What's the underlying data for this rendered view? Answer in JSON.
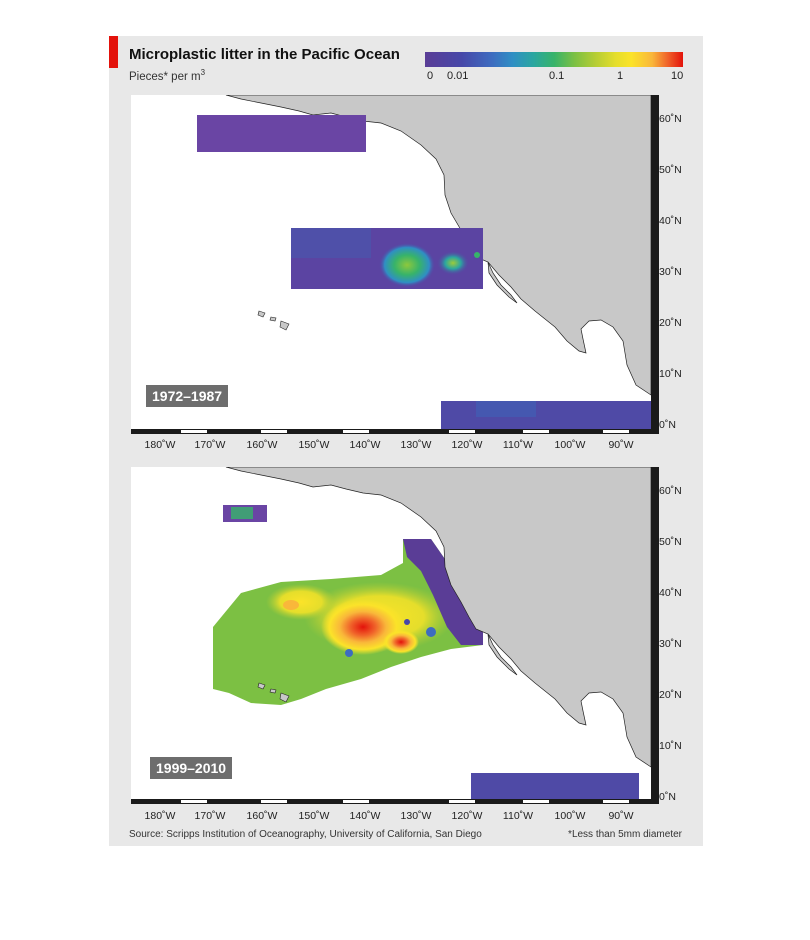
{
  "header": {
    "title": "Microplastic litter in the Pacific Ocean",
    "subtitle": "Pieces* per m",
    "subtitle_sup": "3"
  },
  "legend": {
    "ticks": [
      "0",
      "0.01",
      "0.1",
      "1",
      "10"
    ],
    "colors": {
      "low": "#5a3d96",
      "mid": "#37b36a",
      "high_mid": "#fbe329",
      "high": "#e3120b"
    }
  },
  "panels": [
    {
      "period": "1972–1987"
    },
    {
      "period": "1999–2010"
    }
  ],
  "axes": {
    "longitude_labels": [
      "180˚W",
      "170˚W",
      "160˚W",
      "150˚W",
      "140˚W",
      "130˚W",
      "120˚W",
      "110˚W",
      "100˚W",
      "90˚W"
    ],
    "latitude_labels": [
      "60˚N",
      "50˚N",
      "40˚N",
      "30˚N",
      "20˚N",
      "10˚N",
      "0˚N"
    ]
  },
  "footer": {
    "source": "Source: Scripps Institution of Oceanography, University of California, San Diego",
    "footnote": "*Less than 5mm diameter"
  },
  "colors": {
    "land": "#c8c8c8",
    "ocean": "#ffffff",
    "background": "#e8e8e8",
    "accent": "#e3120b"
  }
}
